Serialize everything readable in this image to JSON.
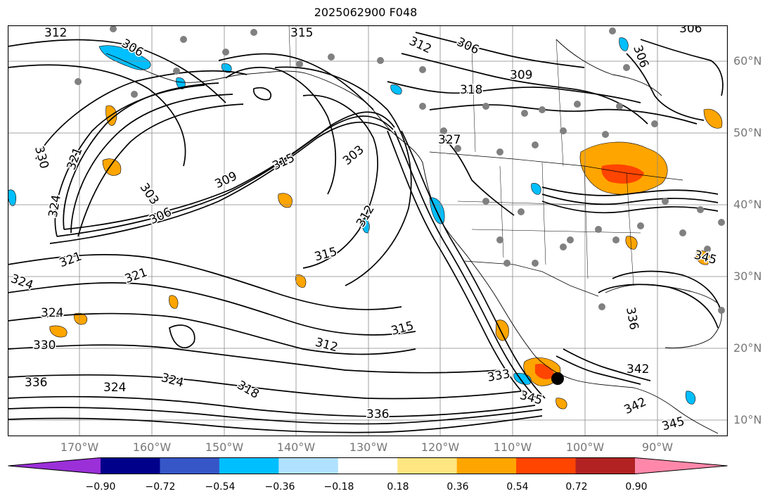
{
  "title": "2025062900 F048",
  "lat_labels": [
    "60°N",
    "50°N",
    "40°N",
    "30°N",
    "20°N",
    "10°N"
  ],
  "lon_labels": [
    "170°W",
    "160°W",
    "150°W",
    "140°W",
    "130°W",
    "120°W",
    "110°W",
    "100°W",
    "90°W"
  ],
  "contour_labels": [
    "312",
    "306",
    "315",
    "312",
    "306",
    "309",
    "318",
    "306",
    "306",
    "330",
    "321",
    "324",
    "303",
    "309",
    "315",
    "303",
    "306",
    "327",
    "312",
    "315",
    "321",
    "321",
    "324",
    "324",
    "330",
    "336",
    "324",
    "318",
    "315",
    "312",
    "333",
    "345",
    "336",
    "342",
    "342",
    "345",
    "336",
    "345",
    "324"
  ],
  "colorbar": {
    "colors": [
      "#9b30d9",
      "#00008b",
      "#3656c8",
      "#00bfff",
      "#b0e2ff",
      "#ffffff",
      "#ffe680",
      "#ffa500",
      "#ff4500",
      "#b22222",
      "#ff88aa"
    ],
    "tick_labels": [
      "−0.90",
      "−0.72",
      "−0.54",
      "−0.36",
      "−0.18",
      "0.18",
      "0.36",
      "0.54",
      "0.72",
      "0.90"
    ]
  },
  "colors": {
    "contour": "#000000",
    "grid": "#888888",
    "station_dot": "#808080",
    "positive_fill": "#ffa500",
    "strong_positive_fill": "#ff4500",
    "negative_fill": "#00bfff"
  }
}
